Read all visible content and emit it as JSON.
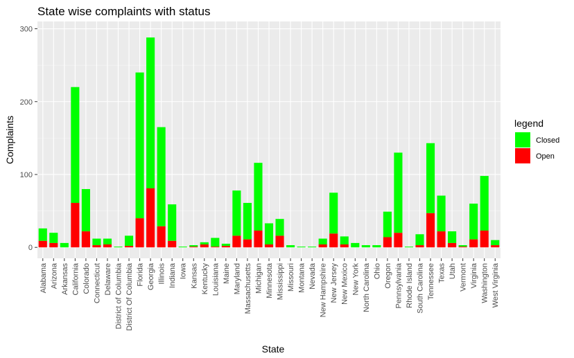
{
  "chart_data": {
    "type": "bar",
    "stacked": true,
    "title": "State wise complaints with status",
    "xlabel": "State",
    "ylabel": "Complaints",
    "ylim": [
      -15,
      310
    ],
    "yticks": [
      0,
      100,
      200,
      300
    ],
    "grid": true,
    "legend": {
      "title": "legend",
      "position": "right",
      "entries": [
        {
          "name": "Closed",
          "color": "#00FF00"
        },
        {
          "name": "Open",
          "color": "#FF0000"
        }
      ]
    },
    "categories": [
      "Alabama",
      "Arizona",
      "Arkansas",
      "California",
      "Colorado",
      "Connecticut",
      "Delaware",
      "District of Columbia",
      "District Of Columbia",
      "Florida",
      "Georgia",
      "Illinois",
      "Indiana",
      "Iowa",
      "Kansas",
      "Kentucky",
      "Louisiana",
      "Maine",
      "Maryland",
      "Massachusetts",
      "Michigan",
      "Minnesota",
      "Mississippi",
      "Missouri",
      "Montana",
      "Nevada",
      "New Hampshire",
      "New Jersey",
      "New Mexico",
      "New York",
      "North Carolina",
      "Ohio",
      "Oregon",
      "Pennsylvania",
      "Rhode Island",
      "South Carolina",
      "Tennessee",
      "Texas",
      "Utah",
      "Vermont",
      "Virginia",
      "Washington",
      "West Virginia"
    ],
    "series": [
      {
        "name": "Open",
        "color": "#FF0000",
        "values": [
          9,
          6,
          0,
          61,
          22,
          3,
          4,
          0,
          2,
          40,
          81,
          29,
          9,
          0,
          1,
          4,
          1,
          2,
          16,
          11,
          23,
          4,
          16,
          0,
          0,
          0,
          4,
          19,
          4,
          0,
          0,
          0,
          14,
          20,
          0,
          3,
          47,
          22,
          6,
          1,
          11,
          23,
          3
        ]
      },
      {
        "name": "Closed",
        "color": "#00FF00",
        "values": [
          17,
          14,
          6,
          159,
          58,
          9,
          8,
          1,
          14,
          200,
          207,
          136,
          50,
          1,
          2,
          3,
          12,
          3,
          62,
          50,
          93,
          29,
          23,
          3,
          1,
          1,
          8,
          56,
          11,
          6,
          3,
          3,
          35,
          110,
          1,
          15,
          96,
          49,
          16,
          2,
          49,
          75,
          7
        ]
      }
    ]
  }
}
